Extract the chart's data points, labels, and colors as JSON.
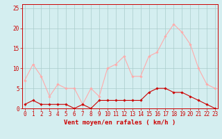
{
  "hours": [
    0,
    1,
    2,
    3,
    4,
    5,
    6,
    7,
    8,
    9,
    10,
    11,
    12,
    13,
    14,
    15,
    16,
    17,
    18,
    19,
    20,
    21,
    22,
    23
  ],
  "avg_wind": [
    1,
    2,
    1,
    1,
    1,
    1,
    0,
    1,
    0,
    2,
    2,
    2,
    2,
    2,
    2,
    4,
    5,
    5,
    4,
    4,
    3,
    2,
    1,
    0
  ],
  "gust_wind": [
    7,
    11,
    8,
    3,
    6,
    5,
    5,
    1,
    5,
    3,
    10,
    11,
    13,
    8,
    8,
    13,
    14,
    18,
    21,
    19,
    16,
    10,
    6,
    5
  ],
  "avg_color": "#cc0000",
  "gust_color": "#ffaaaa",
  "bg_color": "#d4eef0",
  "grid_color": "#aacccc",
  "xlabel": "Vent moyen/en rafales ( km/h )",
  "ylim": [
    0,
    26
  ],
  "yticks": [
    0,
    5,
    10,
    15,
    20,
    25
  ],
  "xlim": [
    -0.3,
    23.3
  ],
  "label_fontsize": 6.5,
  "tick_fontsize": 5.5
}
